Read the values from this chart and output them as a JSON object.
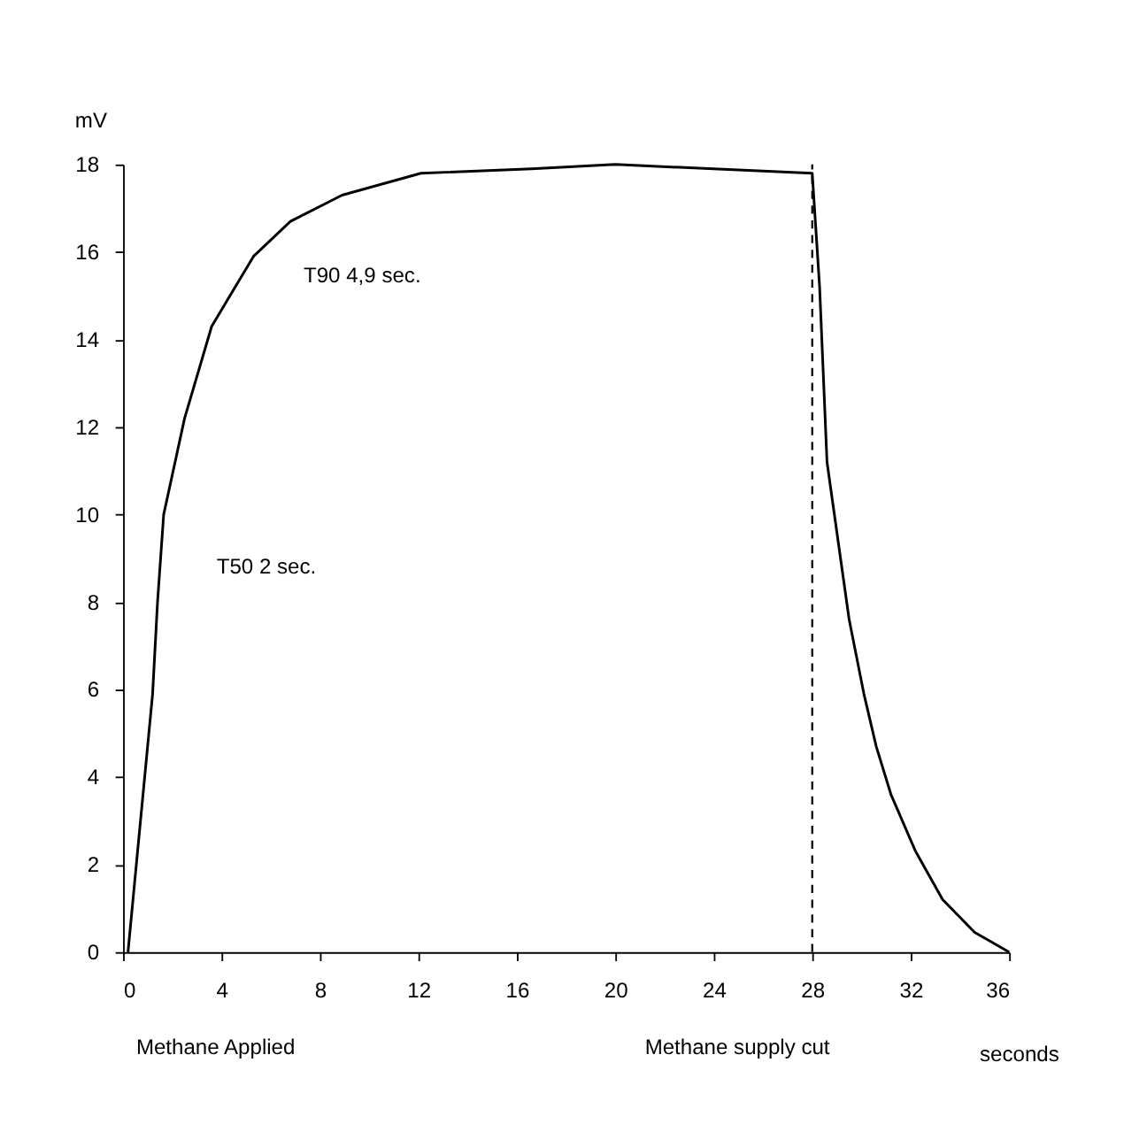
{
  "chart_data": {
    "type": "line",
    "xlabel": "seconds",
    "ylabel": "mV",
    "x": [
      0.2,
      1.2,
      1.4,
      1.65,
      2.5,
      3.6,
      5.3,
      6.8,
      8.9,
      12.1,
      16.6,
      20,
      24,
      28,
      28.3,
      28.6,
      29.1,
      29.5,
      30.1,
      30.6,
      31.2,
      32.2,
      33.3,
      34.6,
      36
    ],
    "series": [
      {
        "color": "#000000",
        "values": [
          0,
          5.9,
          8,
          10,
          12.2,
          14.3,
          15.9,
          16.7,
          17.3,
          17.8,
          17.9,
          18,
          17.9,
          17.8,
          15.2,
          11.2,
          9.2,
          7.6,
          5.9,
          4.7,
          3.6,
          2.3,
          1.2,
          0.45,
          0
        ]
      }
    ],
    "xlim": [
      0,
      36
    ],
    "xticks": [
      0,
      4,
      8,
      12,
      16,
      20,
      24,
      28,
      32,
      36
    ],
    "ylim": [
      0,
      18
    ],
    "yticks": [
      0,
      2,
      4,
      6,
      8,
      10,
      12,
      14,
      16,
      18
    ],
    "ref_lines": [
      {
        "axis": "x",
        "value": 28,
        "color": "#000000",
        "line_style": "dashed"
      }
    ],
    "annotations": [
      "T90 4,9 sec.",
      "T50 2 sec.",
      "Methane Applied",
      "Methane supply cut"
    ],
    "grid": false,
    "marker": "none",
    "line_style": "solid"
  }
}
